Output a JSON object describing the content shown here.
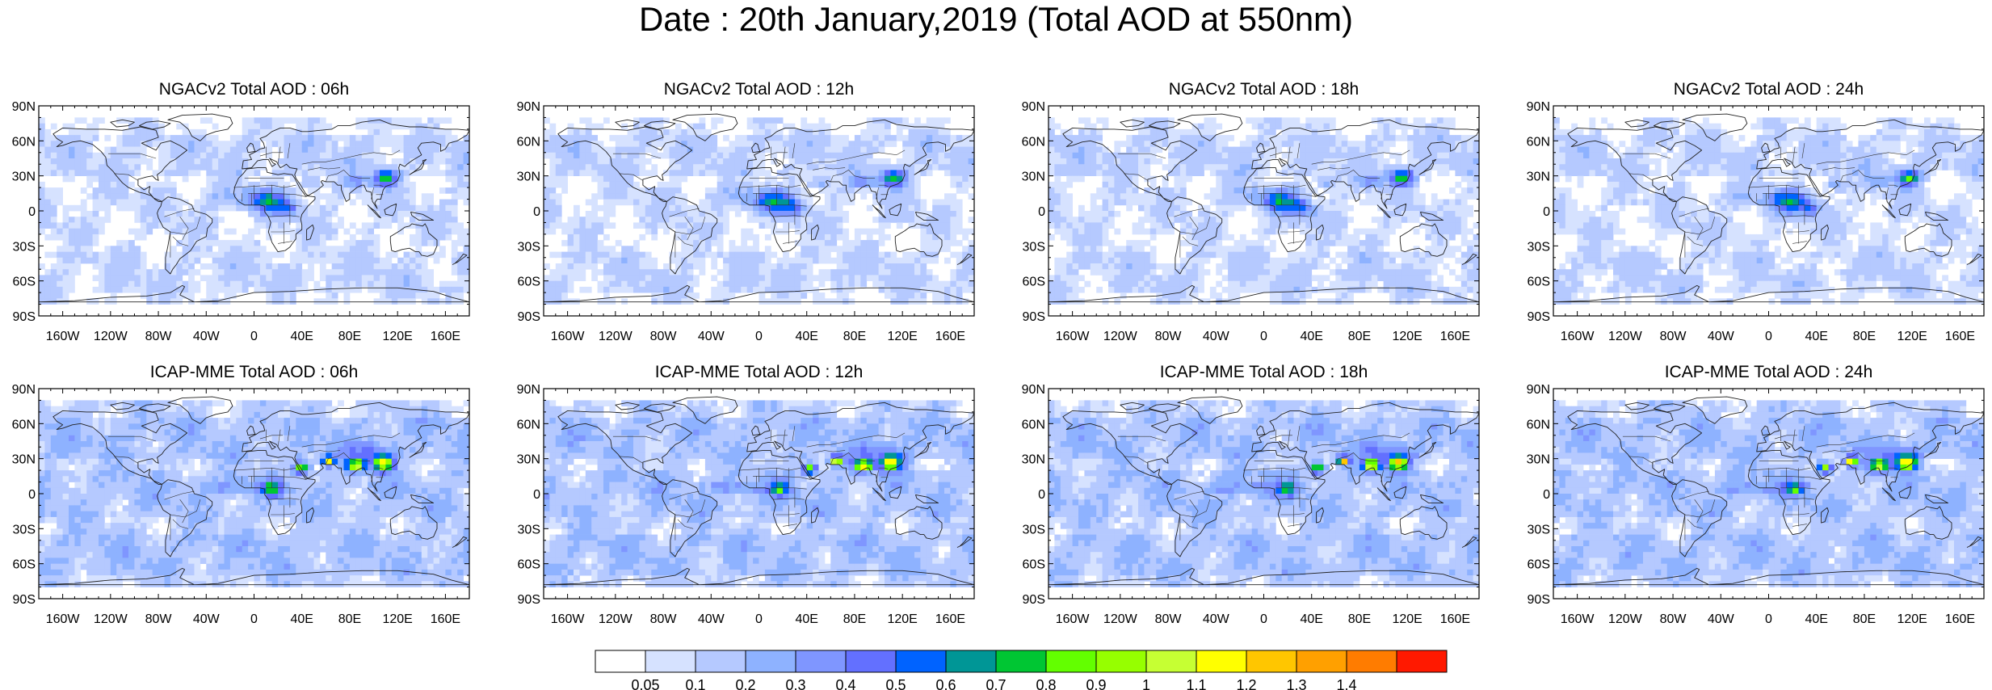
{
  "title": "Date : 20th January,2019 (Total AOD at 550nm)",
  "x_ticks": [
    "160W",
    "120W",
    "80W",
    "40W",
    "0",
    "40E",
    "80E",
    "120E",
    "160E"
  ],
  "y_ticks": [
    "90N",
    "60N",
    "30N",
    "0",
    "30S",
    "60S",
    "90S"
  ],
  "panels": [
    {
      "title": "NGACv2 Total AOD : 06h",
      "model": "NGACv2",
      "hour": 6
    },
    {
      "title": "NGACv2 Total AOD : 12h",
      "model": "NGACv2",
      "hour": 12
    },
    {
      "title": "NGACv2 Total AOD : 18h",
      "model": "NGACv2",
      "hour": 18
    },
    {
      "title": "NGACv2 Total AOD : 24h",
      "model": "NGACv2",
      "hour": 24
    },
    {
      "title": "ICAP-MME Total AOD : 06h",
      "model": "ICAP-MME",
      "hour": 6
    },
    {
      "title": "ICAP-MME Total AOD : 12h",
      "model": "ICAP-MME",
      "hour": 12
    },
    {
      "title": "ICAP-MME Total AOD : 18h",
      "model": "ICAP-MME",
      "hour": 18
    },
    {
      "title": "ICAP-MME Total AOD : 24h",
      "model": "ICAP-MME",
      "hour": 24
    }
  ],
  "colorbar": {
    "labels": [
      "0.05",
      "0.1",
      "0.2",
      "0.3",
      "0.4",
      "0.5",
      "0.6",
      "0.7",
      "0.8",
      "0.9",
      "1",
      "1.1",
      "1.2",
      "1.3",
      "1.4"
    ],
    "colors": [
      "#ffffff",
      "#d6e2ff",
      "#b5c9ff",
      "#8eb2ff",
      "#7f96ff",
      "#6370ff",
      "#0063ff",
      "#009696",
      "#00c633",
      "#63ff00",
      "#96ff00",
      "#c6ff33",
      "#ffff00",
      "#ffc600",
      "#ffa000",
      "#ff7c00",
      "#ff1900"
    ]
  }
}
